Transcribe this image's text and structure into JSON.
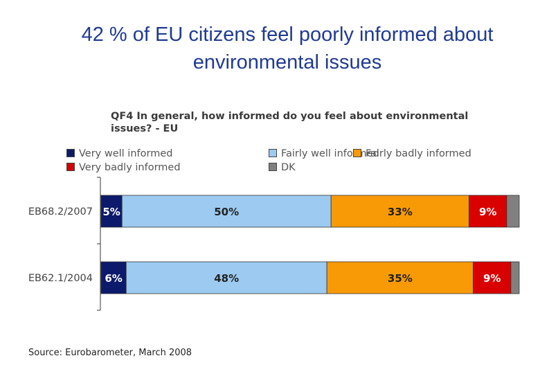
{
  "slide_title": "42 % of EU citizens feel poorly informed about environmental issues",
  "source": "Source: Eurobarometer, March 2008",
  "chart_data": {
    "type": "bar",
    "orientation": "horizontal",
    "stacked": true,
    "title": "QF4 In general, how informed do you feel about environmental issues? - EU",
    "categories": [
      "EB68.2/2007",
      "EB62.1/2004"
    ],
    "series": [
      {
        "name": "Very well informed",
        "color": "#0d1a6b",
        "values": [
          5,
          6
        ],
        "labels": [
          "5%",
          "6%"
        ],
        "label_color": "#ffffff"
      },
      {
        "name": "Fairly well informed",
        "color": "#9ccaf0",
        "values": [
          50,
          48
        ],
        "labels": [
          "50%",
          "48%"
        ],
        "label_color": "#222222"
      },
      {
        "name": "Fairly badly informed",
        "color": "#f79a06",
        "values": [
          33,
          35
        ],
        "labels": [
          "33%",
          "35%"
        ],
        "label_color": "#222222"
      },
      {
        "name": "Very badly informed",
        "color": "#d90000",
        "values": [
          9,
          9
        ],
        "labels": [
          "9%",
          "9%"
        ],
        "label_color": "#ffffff"
      },
      {
        "name": "DK",
        "color": "#808080",
        "values": [
          3,
          2
        ],
        "labels": [
          "",
          ""
        ],
        "label_color": "#ffffff"
      }
    ],
    "xlim": [
      0,
      100
    ],
    "legend_position": "top",
    "grid": false
  }
}
